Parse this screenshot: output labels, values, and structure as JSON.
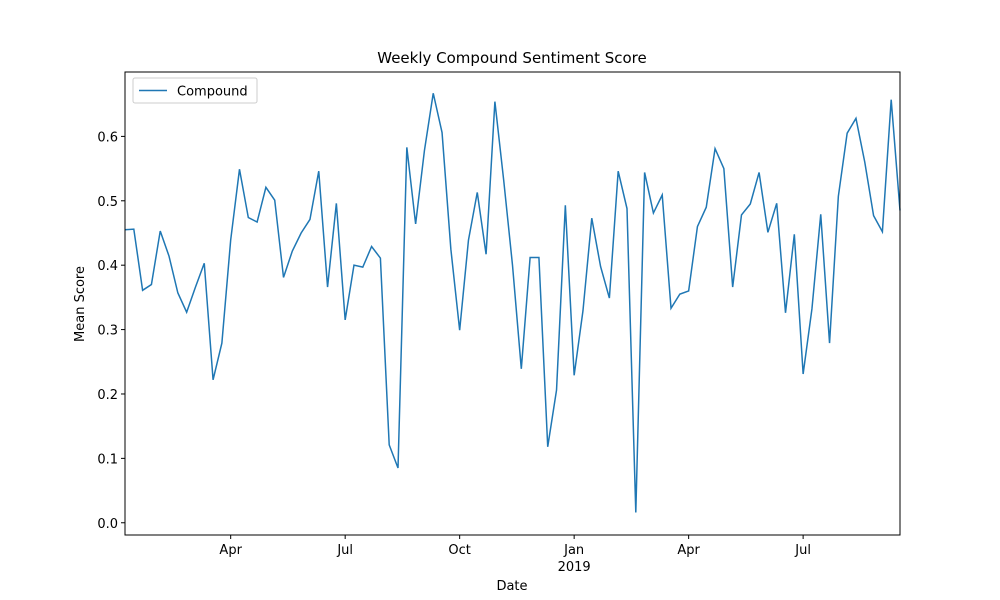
{
  "chart_data": {
    "type": "line",
    "title": "Weekly Compound Sentiment Score",
    "xlabel": "Date",
    "ylabel": "Mean Score",
    "year_label": "2019",
    "legend": "upper left",
    "x": [
      0,
      1,
      2,
      3,
      4,
      5,
      6,
      7,
      8,
      9,
      10,
      11,
      12,
      13,
      14,
      15,
      16,
      17,
      18,
      19,
      20,
      21,
      22,
      23,
      24,
      25,
      26,
      27,
      28,
      29,
      30,
      31,
      32,
      33,
      34,
      35,
      36,
      37,
      38,
      39,
      40,
      41,
      42,
      43,
      44,
      45,
      46,
      47,
      48,
      49,
      50,
      51,
      52,
      53,
      54,
      55,
      56,
      57,
      58,
      59,
      60,
      61,
      62,
      63,
      64,
      65,
      66,
      67,
      68,
      69,
      70,
      71,
      72,
      73,
      74,
      75,
      76,
      77,
      78,
      79,
      80,
      81,
      82,
      83,
      84,
      85,
      86,
      87,
      88
    ],
    "series": [
      {
        "name": "Compound",
        "color": "#1f77b4",
        "values": [
          0.455,
          0.456,
          0.361,
          0.37,
          0.453,
          0.414,
          0.357,
          0.327,
          0.366,
          0.403,
          0.222,
          0.279,
          0.439,
          0.549,
          0.474,
          0.467,
          0.521,
          0.501,
          0.381,
          0.422,
          0.45,
          0.471,
          0.546,
          0.366,
          0.496,
          0.315,
          0.4,
          0.397,
          0.429,
          0.411,
          0.121,
          0.085,
          0.583,
          0.464,
          0.578,
          0.667,
          0.606,
          0.425,
          0.299,
          0.439,
          0.513,
          0.417,
          0.654,
          0.532,
          0.4,
          0.239,
          0.412,
          0.412,
          0.118,
          0.206,
          0.493,
          0.229,
          0.329,
          0.473,
          0.398,
          0.349,
          0.546,
          0.488,
          0.016,
          0.544,
          0.481,
          0.509,
          0.333,
          0.355,
          0.36,
          0.46,
          0.49,
          0.581,
          0.55,
          0.366,
          0.478,
          0.495,
          0.544,
          0.451,
          0.496,
          0.326,
          0.448,
          0.231,
          0.332,
          0.479,
          0.279,
          0.507,
          0.605,
          0.628,
          0.56,
          0.477,
          0.452,
          0.657,
          0.485
        ]
      }
    ],
    "xlim": [
      0,
      88
    ],
    "xticks": [
      {
        "value": 12,
        "label": "Apr"
      },
      {
        "value": 25,
        "label": "Jul"
      },
      {
        "value": 38,
        "label": "Oct"
      },
      {
        "value": 51,
        "label": "Jan"
      },
      {
        "value": 64,
        "label": "Apr"
      },
      {
        "value": 77,
        "label": "Jul"
      }
    ],
    "ylim": [
      -0.019,
      0.7
    ],
    "yticks": [
      {
        "value": 0,
        "label": "0.0"
      },
      0.1,
      0.2,
      0.3,
      0.4,
      0.5,
      0.6
    ]
  }
}
